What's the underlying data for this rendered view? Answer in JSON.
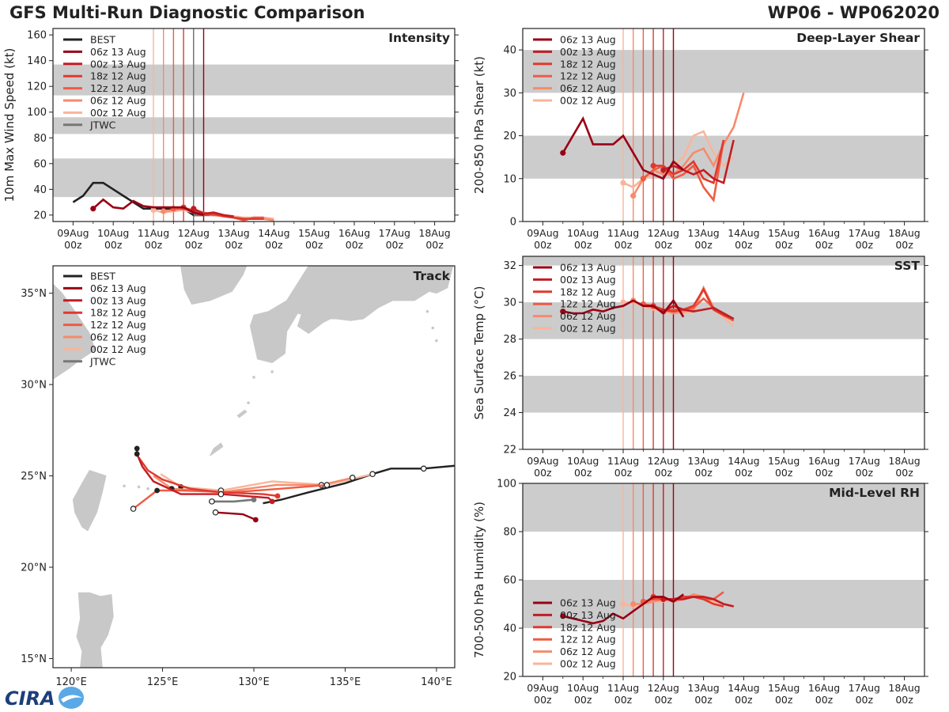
{
  "header": {
    "title": "GFS Multi-Run Diagnostic Comparison",
    "storm_id": "WP06 - WP062020"
  },
  "logo": {
    "text": "CIRA",
    "colors": {
      "navy": "#1c3f7a",
      "sky": "#5aa9e6"
    }
  },
  "colors": {
    "best": "#222222",
    "jtwc": "#777777",
    "band": "#cccccc",
    "land": "#c8c8c8",
    "runs": [
      "#990014",
      "#c21d24",
      "#e0392e",
      "#ef5b43",
      "#f68b6b",
      "#f9b59a"
    ]
  },
  "runs": [
    {
      "name": "06z 13 Aug",
      "color": "#990014",
      "init_day": 4.25
    },
    {
      "name": "00z 13 Aug",
      "color": "#c21d24",
      "init_day": 4.0
    },
    {
      "name": "18z 12 Aug",
      "color": "#e0392e",
      "init_day": 3.75
    },
    {
      "name": "12z 12 Aug",
      "color": "#ef5b43",
      "init_day": 3.5
    },
    {
      "name": "06z 12 Aug",
      "color": "#f68b6b",
      "init_day": 3.25
    },
    {
      "name": "00z 12 Aug",
      "color": "#f9b59a",
      "init_day": 3.0
    }
  ],
  "time_axis": {
    "tick_labels": [
      [
        "09Aug",
        "00z"
      ],
      [
        "10Aug",
        "00z"
      ],
      [
        "11Aug",
        "00z"
      ],
      [
        "12Aug",
        "00z"
      ],
      [
        "13Aug",
        "00z"
      ],
      [
        "14Aug",
        "00z"
      ],
      [
        "15Aug",
        "00z"
      ],
      [
        "16Aug",
        "00z"
      ],
      [
        "17Aug",
        "00z"
      ],
      [
        "18Aug",
        "00z"
      ]
    ],
    "note": "x values are days since 08Aug 00z"
  },
  "chart_data": [
    {
      "id": "intensity",
      "type": "line",
      "title": "Intensity",
      "ylabel": "10m Max Wind Speed (kt)",
      "ylim": [
        15,
        165
      ],
      "xlim": [
        0.5,
        10.5
      ],
      "yticks": [
        20,
        40,
        60,
        80,
        100,
        120,
        140,
        160
      ],
      "bands": [
        [
          34,
          64
        ],
        [
          83,
          96
        ],
        [
          113,
          137
        ]
      ],
      "legend": [
        "BEST",
        "06z 13 Aug",
        "00z 13 Aug",
        "18z 12 Aug",
        "12z 12 Aug",
        "06z 12 Aug",
        "00z 12 Aug",
        "JTWC"
      ],
      "best": {
        "x": [
          1.0,
          1.25,
          1.5,
          1.75,
          2.0,
          2.25,
          2.5,
          2.75,
          3.0,
          3.25,
          3.5,
          3.75,
          4.0,
          4.25
        ],
        "y": [
          30,
          35,
          45,
          45,
          40,
          35,
          30,
          25,
          25,
          25,
          25,
          25,
          20,
          20
        ]
      },
      "jtwc": {
        "x": [
          4.0,
          4.25,
          4.5
        ],
        "y": [
          20,
          20,
          20
        ]
      },
      "series": [
        {
          "run": 0,
          "x": [
            1.5,
            1.75,
            2.0,
            2.25,
            2.5,
            2.75,
            3.0,
            3.25,
            3.5,
            3.75,
            4.0,
            4.25
          ],
          "y": [
            25,
            32,
            26,
            25,
            31,
            27,
            26,
            26,
            26,
            26,
            22,
            20
          ]
        },
        {
          "run": 1,
          "x": [
            4.0,
            4.25,
            4.5,
            4.75,
            5.0
          ],
          "y": [
            25,
            21,
            22,
            20,
            19
          ]
        },
        {
          "run": 2,
          "x": [
            3.75,
            4.0,
            4.25,
            4.5,
            4.75,
            5.0,
            5.25,
            5.5,
            5.75
          ],
          "y": [
            26,
            23,
            20,
            21,
            19,
            18,
            17,
            17,
            17
          ]
        },
        {
          "run": 3,
          "x": [
            3.5,
            3.75,
            4.0,
            4.25,
            4.5,
            4.75,
            5.0,
            5.25,
            5.5,
            5.75
          ],
          "y": [
            25,
            25,
            24,
            22,
            20,
            20,
            18,
            16,
            18,
            18
          ]
        },
        {
          "run": 4,
          "x": [
            3.25,
            3.5,
            3.75,
            4.0,
            4.25,
            4.5,
            4.75,
            5.0,
            5.25,
            5.5,
            5.75,
            6.0
          ],
          "y": [
            23,
            24,
            25,
            22,
            21,
            20,
            19,
            18,
            17,
            17,
            17,
            16
          ]
        },
        {
          "run": 5,
          "x": [
            3.0,
            3.25,
            3.5,
            3.75,
            4.0,
            4.25,
            4.5,
            4.75,
            5.0,
            5.25,
            5.5,
            5.75,
            6.0
          ],
          "y": [
            24,
            22,
            23,
            24,
            22,
            21,
            20,
            20,
            19,
            18,
            18,
            18,
            17
          ]
        }
      ]
    },
    {
      "id": "shear",
      "type": "line",
      "title": "Deep-Layer Shear",
      "ylabel": "200-850 hPa Shear (kt)",
      "ylim": [
        0,
        45
      ],
      "xlim": [
        0.5,
        10.5
      ],
      "yticks": [
        0,
        10,
        20,
        30,
        40
      ],
      "bands": [
        [
          10,
          20
        ],
        [
          30,
          40
        ]
      ],
      "legend": [
        "06z 13 Aug",
        "00z 13 Aug",
        "18z 12 Aug",
        "12z 12 Aug",
        "06z 12 Aug",
        "00z 12 Aug"
      ],
      "series": [
        {
          "run": 0,
          "x": [
            1.5,
            2.0,
            2.25,
            2.5,
            2.75,
            3.0,
            3.25,
            3.5,
            3.75,
            4.0,
            4.25,
            4.5
          ],
          "y": [
            16,
            24,
            18,
            18,
            18,
            20,
            16,
            12,
            11,
            10,
            14,
            12
          ]
        },
        {
          "run": 1,
          "x": [
            4.0,
            4.25,
            4.5,
            4.75,
            5.0,
            5.25,
            5.5,
            5.75
          ],
          "y": [
            12,
            13,
            12,
            11,
            12,
            10,
            9,
            19
          ]
        },
        {
          "run": 2,
          "x": [
            3.75,
            4.0,
            4.25,
            4.5,
            4.75,
            5.0,
            5.25,
            5.5
          ],
          "y": [
            13,
            13,
            11,
            12,
            14,
            10,
            9,
            19
          ]
        },
        {
          "run": 3,
          "x": [
            3.5,
            3.75,
            4.0,
            4.25,
            4.5,
            4.75,
            5.0,
            5.25,
            5.5
          ],
          "y": [
            10,
            12,
            13,
            10,
            11,
            13,
            8,
            5,
            19
          ]
        },
        {
          "run": 4,
          "x": [
            3.25,
            3.5,
            3.75,
            4.0,
            4.25,
            4.5,
            4.75,
            5.0,
            5.25,
            5.5,
            5.75,
            6.0
          ],
          "y": [
            6,
            10,
            12,
            11,
            11,
            13,
            16,
            17,
            13,
            18,
            22,
            30
          ]
        },
        {
          "run": 5,
          "x": [
            3.0,
            3.25,
            3.5,
            3.75,
            4.0,
            4.25,
            4.5,
            4.75,
            5.0,
            5.25,
            5.5,
            5.75
          ],
          "y": [
            9,
            8,
            10,
            11,
            12,
            13,
            15,
            20,
            21,
            16,
            13,
            15
          ]
        }
      ]
    },
    {
      "id": "sst",
      "type": "line",
      "title": "SST",
      "ylabel": "Sea Surface Temp (°C)",
      "ylim": [
        22,
        32.5
      ],
      "xlim": [
        0.5,
        10.5
      ],
      "yticks": [
        22,
        24,
        26,
        28,
        30,
        32
      ],
      "bands": [
        [
          24,
          26
        ],
        [
          28,
          30
        ],
        [
          32,
          33
        ]
      ],
      "legend": [
        "06z 13 Aug",
        "00z 13 Aug",
        "18z 12 Aug",
        "12z 12 Aug",
        "06z 12 Aug",
        "00z 12 Aug"
      ],
      "series": [
        {
          "run": 0,
          "x": [
            1.5,
            1.75,
            2.0,
            2.25,
            2.5,
            2.75,
            3.0,
            3.25,
            3.5,
            3.75,
            4.0,
            4.25,
            4.5
          ],
          "y": [
            29.5,
            29.4,
            29.4,
            29.6,
            29.5,
            29.7,
            29.8,
            30.1,
            29.8,
            29.8,
            29.4,
            30.1,
            29.2
          ]
        },
        {
          "run": 1,
          "x": [
            4.0,
            4.25,
            4.5,
            4.75,
            5.0,
            5.25,
            5.5,
            5.75
          ],
          "y": [
            29.5,
            29.8,
            29.6,
            29.5,
            29.6,
            29.7,
            29.4,
            29.1
          ]
        },
        {
          "run": 2,
          "x": [
            3.75,
            4.0,
            4.25,
            4.5,
            4.75,
            5.0,
            5.25,
            5.5,
            5.75
          ],
          "y": [
            29.8,
            29.6,
            29.5,
            29.6,
            29.8,
            30.7,
            29.6,
            29.3,
            29.1
          ]
        },
        {
          "run": 3,
          "x": [
            3.5,
            3.75,
            4.0,
            4.25,
            4.5,
            4.75,
            5.0,
            5.25,
            5.5,
            5.75
          ],
          "y": [
            29.9,
            29.8,
            29.5,
            29.6,
            29.6,
            29.7,
            30.2,
            29.7,
            29.3,
            29.0
          ]
        },
        {
          "run": 4,
          "x": [
            3.25,
            3.5,
            3.75,
            4.0,
            4.25,
            4.5,
            4.75,
            5.0,
            5.25,
            5.5,
            5.75
          ],
          "y": [
            30.1,
            29.8,
            29.7,
            29.6,
            29.4,
            29.5,
            29.6,
            30.8,
            29.7,
            29.3,
            29.0
          ]
        },
        {
          "run": 5,
          "x": [
            3.0,
            3.25,
            3.5,
            3.75,
            4.0,
            4.25,
            4.5,
            4.75,
            5.0,
            5.25,
            5.5,
            5.75
          ],
          "y": [
            30.0,
            30.0,
            29.8,
            29.6,
            29.5,
            29.4,
            29.4,
            29.5,
            30.7,
            29.6,
            29.2,
            28.7
          ]
        }
      ]
    },
    {
      "id": "rh",
      "type": "line",
      "title": "Mid-Level RH",
      "ylabel": "700-500 hPa Humidity (%)",
      "ylim": [
        20,
        100
      ],
      "xlim": [
        0.5,
        10.5
      ],
      "yticks": [
        20,
        40,
        60,
        80,
        100
      ],
      "bands": [
        [
          40,
          60
        ],
        [
          80,
          100
        ]
      ],
      "legend": [
        "06z 13 Aug",
        "00z 13 Aug",
        "18z 12 Aug",
        "12z 12 Aug",
        "06z 12 Aug",
        "00z 12 Aug"
      ],
      "series": [
        {
          "run": 0,
          "x": [
            1.5,
            1.75,
            2.0,
            2.25,
            2.5,
            2.75,
            3.0,
            3.25,
            3.5,
            3.75,
            4.0,
            4.25,
            4.5
          ],
          "y": [
            45,
            44,
            43,
            42,
            43,
            46,
            44,
            47,
            50,
            53,
            53,
            51,
            54
          ]
        },
        {
          "run": 1,
          "x": [
            4.0,
            4.25,
            4.5,
            4.75,
            5.0,
            5.25,
            5.5,
            5.75
          ],
          "y": [
            52,
            52,
            52,
            53,
            53,
            52,
            50,
            49
          ]
        },
        {
          "run": 2,
          "x": [
            3.75,
            4.0,
            4.25,
            4.5,
            4.75,
            5.0,
            5.25,
            5.5
          ],
          "y": [
            53,
            52,
            52,
            53,
            53,
            52,
            50,
            49
          ]
        },
        {
          "run": 3,
          "x": [
            3.5,
            3.75,
            4.0,
            4.25,
            4.5,
            4.75,
            5.0,
            5.25,
            5.5
          ],
          "y": [
            51,
            52,
            52,
            52,
            53,
            53,
            52,
            52,
            55
          ]
        },
        {
          "run": 4,
          "x": [
            3.25,
            3.5,
            3.75,
            4.0,
            4.25,
            4.5,
            4.75,
            5.0,
            5.25,
            5.5,
            5.75
          ],
          "y": [
            50,
            50,
            51,
            52,
            51,
            52,
            54,
            53,
            52,
            50,
            49
          ]
        },
        {
          "run": 5,
          "x": [
            3.0,
            3.25,
            3.5,
            3.75,
            4.0,
            4.25,
            4.5,
            4.75,
            5.0,
            5.25,
            5.5,
            5.75
          ],
          "y": [
            50,
            49,
            50,
            51,
            51,
            52,
            53,
            53,
            52,
            51,
            50,
            49
          ]
        }
      ]
    },
    {
      "id": "track",
      "type": "scatter",
      "title": "Track",
      "xlim": [
        119.0,
        141.0
      ],
      "ylim": [
        14.5,
        36.5
      ],
      "xticks": [
        [
          120,
          "120°E"
        ],
        [
          125,
          "125°E"
        ],
        [
          130,
          "130°E"
        ],
        [
          135,
          "135°E"
        ],
        [
          140,
          "140°E"
        ]
      ],
      "yticks": [
        [
          15,
          "15°N"
        ],
        [
          20,
          "20°N"
        ],
        [
          25,
          "25°N"
        ],
        [
          30,
          "30°N"
        ],
        [
          35,
          "35°N"
        ]
      ],
      "legend": [
        "BEST",
        "06z 13 Aug",
        "00z 13 Aug",
        "18z 12 Aug",
        "12z 12 Aug",
        "06z 12 Aug",
        "00z 12 Aug",
        "JTWC"
      ],
      "best": {
        "lon": [
          141.5,
          139.3,
          137.5,
          136.5,
          135.0,
          133.0,
          131.5,
          130.5
        ],
        "lat": [
          25.6,
          25.4,
          25.4,
          25.1,
          24.6,
          24.1,
          23.7,
          23.5
        ],
        "open_idx": [
          1
        ],
        "filled_idx": [
          3
        ]
      },
      "jtwc": {
        "lon": [
          130.0,
          128.9,
          127.7
        ],
        "lat": [
          23.7,
          23.6,
          23.6
        ]
      },
      "series": [
        {
          "run": 0,
          "lon": [
            130.1,
            129.4,
            127.9
          ],
          "lat": [
            22.6,
            22.9,
            23.0
          ],
          "open_idx": [
            2
          ],
          "filled_idx": [
            0
          ]
        },
        {
          "run": 1,
          "lon": [
            131.0,
            130.8,
            128.2,
            126.0,
            124.5,
            123.9,
            123.6,
            123.6
          ],
          "lat": [
            23.6,
            23.8,
            24.0,
            24.0,
            24.7,
            25.5,
            26.2,
            26.5
          ],
          "open_idx": [
            2
          ],
          "filled_idx": [
            0,
            6,
            7
          ]
        },
        {
          "run": 2,
          "lon": [
            131.3,
            130.5,
            128.2,
            126.5,
            125.0,
            124.2,
            123.7
          ],
          "lat": [
            23.9,
            24.0,
            24.1,
            24.3,
            24.8,
            25.3,
            26.0
          ],
          "open_idx": [],
          "filled_idx": [
            0
          ]
        },
        {
          "run": 3,
          "lon": [
            134.0,
            131.5,
            128.8,
            126.0,
            124.7,
            123.4
          ],
          "lat": [
            24.5,
            24.3,
            24.1,
            24.2,
            24.2,
            23.2
          ],
          "open_idx": [
            0,
            5
          ],
          "filled_idx": [
            4
          ]
        },
        {
          "run": 4,
          "lon": [
            135.4,
            133.7,
            131.2,
            128.2,
            125.5,
            124.5
          ],
          "lat": [
            24.9,
            24.5,
            24.5,
            24.1,
            24.3,
            25.0
          ],
          "open_idx": [
            0,
            1
          ],
          "filled_idx": [
            4
          ]
        },
        {
          "run": 5,
          "lon": [
            136.5,
            134.0,
            131.0,
            128.2,
            126.0,
            124.9
          ],
          "lat": [
            25.1,
            24.5,
            24.7,
            24.2,
            24.4,
            25.1
          ],
          "open_idx": [
            0,
            3
          ],
          "filled_idx": [
            4
          ]
        }
      ]
    }
  ]
}
